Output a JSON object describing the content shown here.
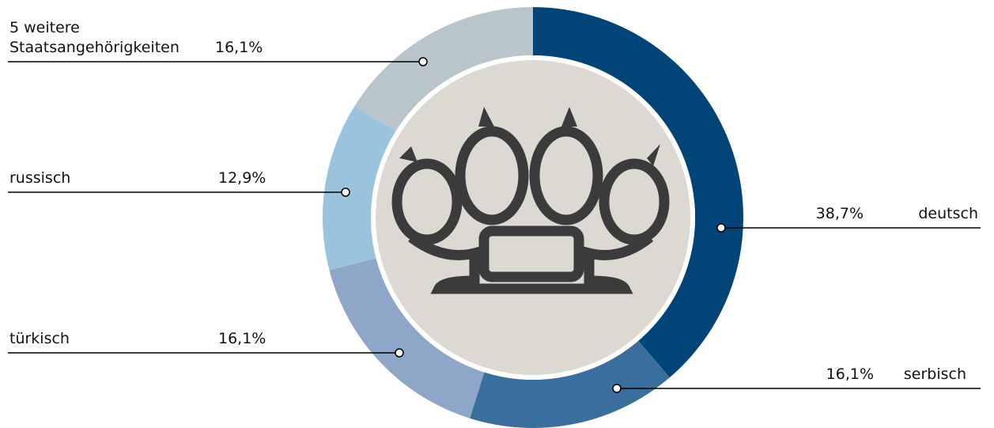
{
  "chart_data": {
    "type": "pie",
    "donut": true,
    "categories": [
      "deutsch",
      "serbisch",
      "türkisch",
      "russisch",
      "5 weitere Staatsangehörigkeiten"
    ],
    "values": [
      38.7,
      16.1,
      16.1,
      12.9,
      16.1
    ],
    "value_labels": [
      "38,7%",
      "16,1%",
      "16,1%",
      "12,9%",
      "16,1%"
    ],
    "colors": [
      "#004478",
      "#3a6e9c",
      "#8ea6c8",
      "#9ac3dd",
      "#b8c5cb"
    ]
  }
}
